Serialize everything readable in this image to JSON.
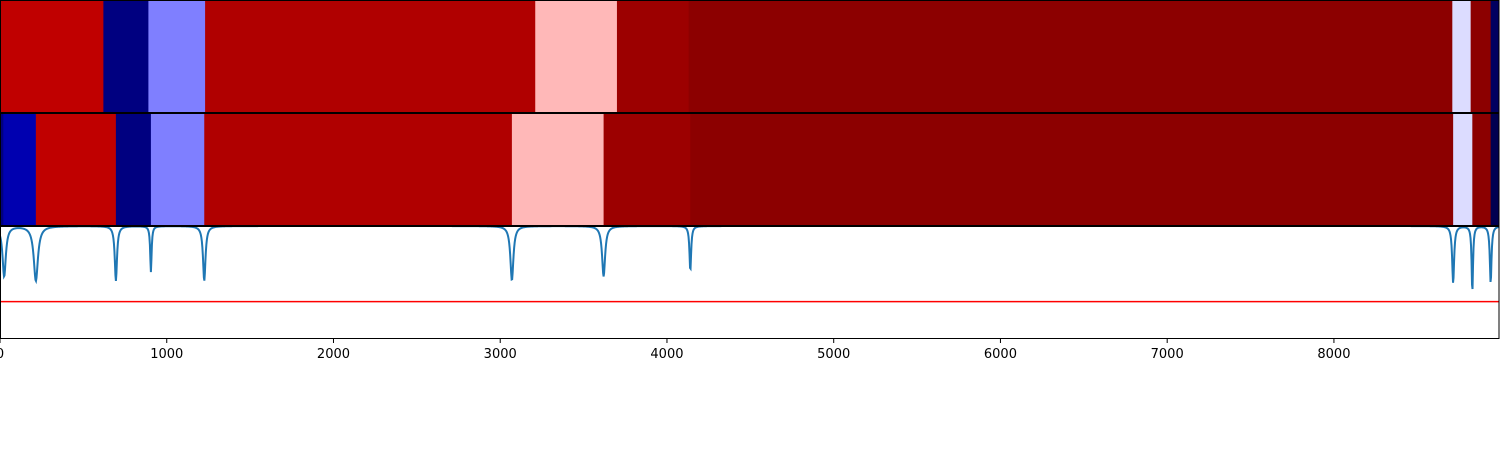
{
  "chart_data": {
    "type": "heatmap",
    "xlim": [
      0,
      8990
    ],
    "x_ticks": [
      0,
      1000,
      2000,
      3000,
      4000,
      5000,
      6000,
      7000,
      8000
    ],
    "x_tick_labels": [
      "0",
      "1000",
      "2000",
      "3000",
      "4000",
      "5000",
      "6000",
      "7000",
      "8000"
    ],
    "color_bands": [
      {
        "segments": [
          {
            "start": 0,
            "end": 620,
            "color": "#c00000"
          },
          {
            "start": 620,
            "end": 890,
            "color": "#000080"
          },
          {
            "start": 890,
            "end": 1230,
            "color": "#7f7fff"
          },
          {
            "start": 1230,
            "end": 3210,
            "color": "#b00000"
          },
          {
            "start": 3210,
            "end": 3700,
            "color": "#ffb8b8"
          },
          {
            "start": 3700,
            "end": 4130,
            "color": "#9c0000"
          },
          {
            "start": 4130,
            "end": 8710,
            "color": "#8c0000"
          },
          {
            "start": 8710,
            "end": 8820,
            "color": "#dcdcff"
          },
          {
            "start": 8820,
            "end": 8940,
            "color": "#8c0000"
          },
          {
            "start": 8940,
            "end": 8990,
            "color": "#000060"
          }
        ]
      },
      {
        "segments": [
          {
            "start": 0,
            "end": 20,
            "color": "#000080"
          },
          {
            "start": 20,
            "end": 215,
            "color": "#0000b0"
          },
          {
            "start": 215,
            "end": 695,
            "color": "#c00000"
          },
          {
            "start": 695,
            "end": 905,
            "color": "#000080"
          },
          {
            "start": 905,
            "end": 1225,
            "color": "#7f7fff"
          },
          {
            "start": 1225,
            "end": 3070,
            "color": "#b00000"
          },
          {
            "start": 3070,
            "end": 3620,
            "color": "#ffb8b8"
          },
          {
            "start": 3620,
            "end": 4140,
            "color": "#9c0000"
          },
          {
            "start": 4140,
            "end": 8715,
            "color": "#8c0000"
          },
          {
            "start": 8715,
            "end": 8830,
            "color": "#dcdcff"
          },
          {
            "start": 8830,
            "end": 8940,
            "color": "#8c0000"
          },
          {
            "start": 8940,
            "end": 8990,
            "color": "#000050"
          }
        ]
      }
    ],
    "signal": {
      "color": "#1f77b4",
      "baseline": 1.0,
      "ylim": [
        -1.0,
        1.0
      ],
      "dips": [
        {
          "x": 25,
          "depth": 0.9,
          "width": 12
        },
        {
          "x": 215,
          "depth": 0.98,
          "width": 15
        },
        {
          "x": 695,
          "depth": 0.98,
          "width": 8
        },
        {
          "x": 905,
          "depth": 0.82,
          "width": 5
        },
        {
          "x": 1225,
          "depth": 0.98,
          "width": 9
        },
        {
          "x": 3070,
          "depth": 0.97,
          "width": 11
        },
        {
          "x": 3620,
          "depth": 0.9,
          "width": 11
        },
        {
          "x": 4140,
          "depth": 0.8,
          "width": 6
        },
        {
          "x": 8715,
          "depth": 1.02,
          "width": 7
        },
        {
          "x": 8830,
          "depth": 1.18,
          "width": 5
        },
        {
          "x": 8940,
          "depth": 1.02,
          "width": 6
        }
      ],
      "reference_line": {
        "y": -0.35,
        "color": "#ff0000"
      }
    }
  }
}
